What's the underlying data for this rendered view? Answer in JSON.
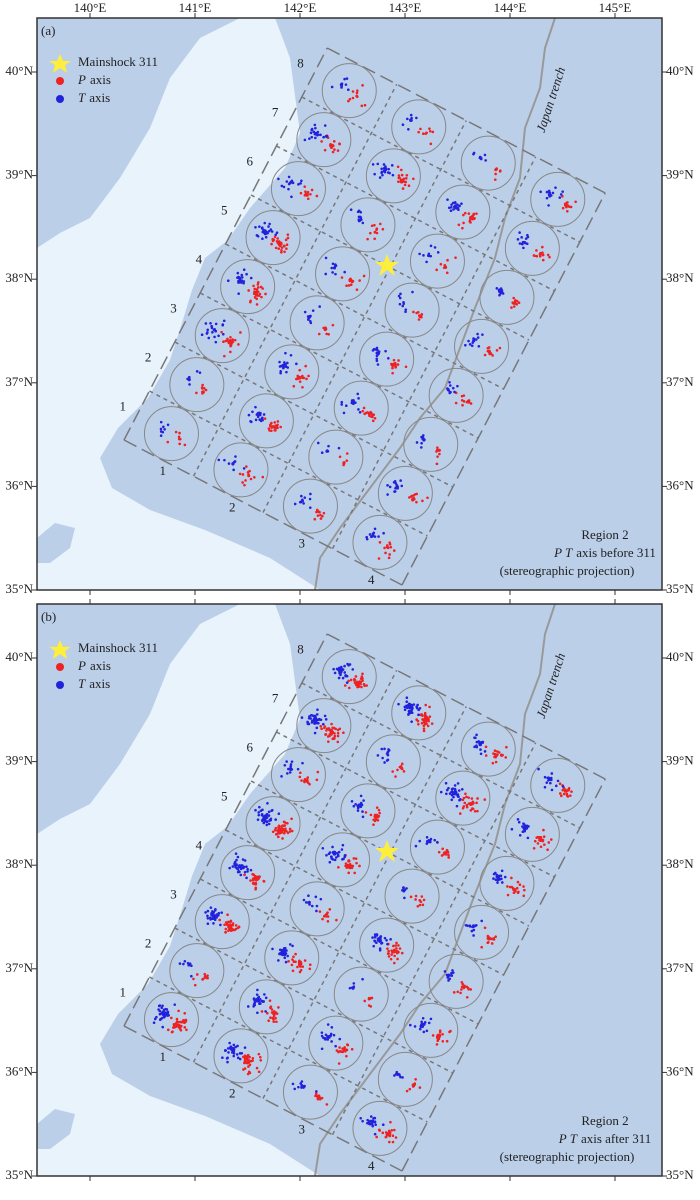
{
  "panels": [
    {
      "label": "(a)",
      "region": "Region 2",
      "pt_italic": "P T",
      "pt_text": "axis before 311",
      "projection": "(stereographic projection)"
    },
    {
      "label": "(b)",
      "region": "Region 2",
      "pt_italic": "P T",
      "pt_text": "axis after 311",
      "projection": "(stereographic projection)"
    }
  ],
  "legend": [
    {
      "text": "Mainshock 311"
    },
    {
      "italic": "P",
      "text": "axis"
    },
    {
      "italic": "T",
      "text": "axis"
    }
  ],
  "row_labels": [
    "1",
    "2",
    "3",
    "4",
    "5",
    "6",
    "7",
    "8"
  ],
  "col_labels": [
    "1",
    "2",
    "3",
    "4"
  ],
  "trench_label": "Japan trench",
  "xticks": [
    {
      "value": 140,
      "label": "140°E"
    },
    {
      "value": 141,
      "label": "141°E"
    },
    {
      "value": 142,
      "label": "142°E"
    },
    {
      "value": 143,
      "label": "143°E"
    },
    {
      "value": 144,
      "label": "144°E"
    },
    {
      "value": 145,
      "label": "145°E"
    }
  ],
  "yticks": [
    {
      "value": 40,
      "label": "40°N"
    },
    {
      "value": 39,
      "label": "39°N"
    },
    {
      "value": 38,
      "label": "38°N"
    },
    {
      "value": 37,
      "label": "37°N"
    },
    {
      "value": 36,
      "label": "36°N"
    },
    {
      "value": 35,
      "label": "35°N"
    }
  ]
}
